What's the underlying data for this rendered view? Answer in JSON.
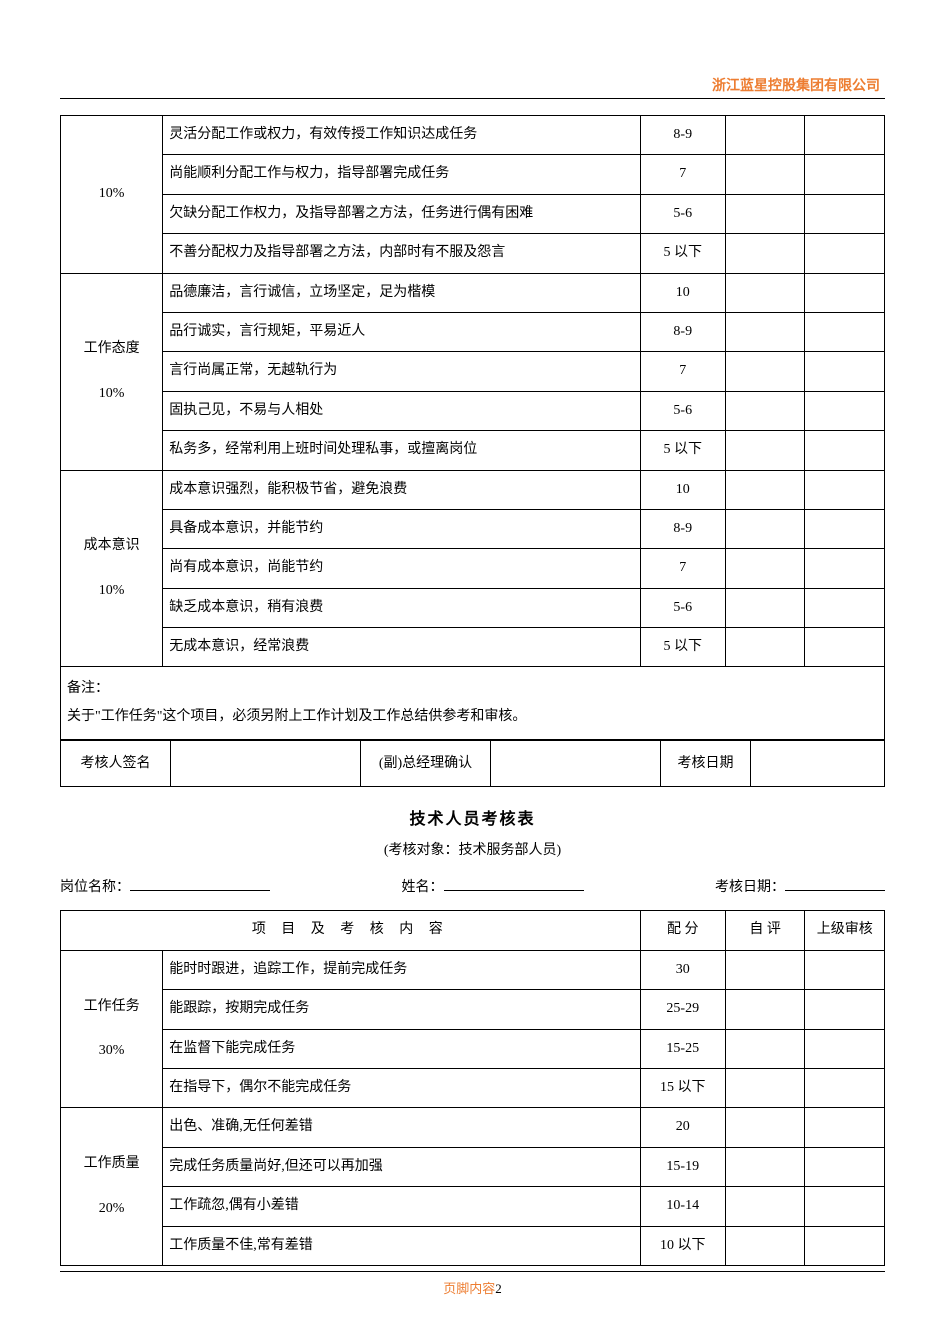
{
  "colors": {
    "company_name": "#ed7d31",
    "footer_text": "#ed7d31",
    "footer_page": "#000000",
    "text": "#000000",
    "border": "#000000",
    "background": "#ffffff"
  },
  "header": {
    "company_name": "浙江蓝星控股集团有限公司"
  },
  "table1": {
    "columns": [
      "配 分",
      "自 评",
      "上级审核"
    ],
    "groups": [
      {
        "category": "10%",
        "rows": [
          {
            "desc": "灵活分配工作或权力，有效传授工作知识达成任务",
            "score": "8-9"
          },
          {
            "desc": "尚能顺利分配工作与权力，指导部署完成任务",
            "score": "7"
          },
          {
            "desc": "欠缺分配工作权力，及指导部署之方法，任务进行偶有困难",
            "score": "5-6"
          },
          {
            "desc": "不善分配权力及指导部署之方法，内部时有不服及怨言",
            "score": "5 以下"
          }
        ]
      },
      {
        "category": "工作态度\n10%",
        "rows": [
          {
            "desc": "品德廉洁，言行诚信，立场坚定，足为楷模",
            "score": "10"
          },
          {
            "desc": "品行诚实，言行规矩，平易近人",
            "score": "8-9"
          },
          {
            "desc": "言行尚属正常，无越轨行为",
            "score": "7"
          },
          {
            "desc": "固执己见，不易与人相处",
            "score": "5-6"
          },
          {
            "desc": "私务多，经常利用上班时间处理私事，或擅离岗位",
            "score": "5 以下"
          }
        ]
      },
      {
        "category": "成本意识\n10%",
        "rows": [
          {
            "desc": "成本意识强烈，能积极节省，避免浪费",
            "score": "10"
          },
          {
            "desc": "具备成本意识，并能节约",
            "score": "8-9"
          },
          {
            "desc": "尚有成本意识，尚能节约",
            "score": "7"
          },
          {
            "desc": "缺乏成本意识，稍有浪费",
            "score": "5-6"
          },
          {
            "desc": "无成本意识，经常浪费",
            "score": "5 以下"
          }
        ]
      }
    ],
    "remark_label": "备注：",
    "remark_text": "关于\"工作任务\"这个项目，必须另附上工作计划及工作总结供参考和审核。",
    "sign": {
      "c1": "考核人签名",
      "c2": "(副)总经理确认",
      "c3": "考核日期"
    }
  },
  "section2": {
    "title": "技术人员考核表",
    "subtitle": "(考核对象：技术服务部人员)",
    "fields": {
      "position_label": "岗位名称：",
      "name_label": "姓名：",
      "date_label": "考核日期："
    }
  },
  "table2": {
    "header": {
      "c1": "项 目 及 考 核 内 容",
      "c2": "配 分",
      "c3": "自 评",
      "c4": "上级审核"
    },
    "groups": [
      {
        "category": "工作任务\n30%",
        "rows": [
          {
            "desc": "能时时跟进，追踪工作，提前完成任务",
            "score": "30"
          },
          {
            "desc": "能跟踪，按期完成任务",
            "score": "25-29"
          },
          {
            "desc": "在监督下能完成任务",
            "score": "15-25"
          },
          {
            "desc": "在指导下，偶尔不能完成任务",
            "score": "15 以下"
          }
        ]
      },
      {
        "category": "工作质量\n20%",
        "rows": [
          {
            "desc": "出色、准确,无任何差错",
            "score": "20"
          },
          {
            "desc": "完成任务质量尚好,但还可以再加强",
            "score": "15-19"
          },
          {
            "desc": "工作疏忽,偶有小差错",
            "score": "10-14"
          },
          {
            "desc": "工作质量不佳,常有差错",
            "score": "10 以下"
          }
        ]
      }
    ]
  },
  "footer": {
    "label": "页脚内容",
    "page": "2"
  }
}
